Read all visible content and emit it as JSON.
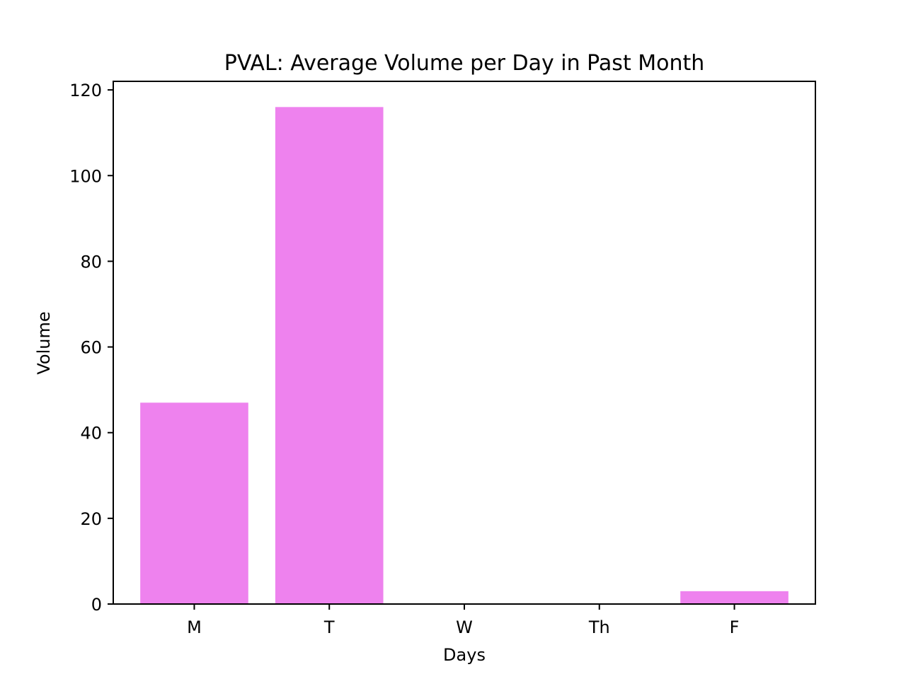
{
  "chart_data": {
    "type": "bar",
    "title": "PVAL: Average Volume per Day in Past Month",
    "xlabel": "Days",
    "ylabel": "Volume",
    "categories": [
      "M",
      "T",
      "W",
      "Th",
      "F"
    ],
    "values": [
      47,
      116,
      0,
      0,
      3
    ],
    "ylim": [
      0,
      122
    ],
    "yticks": [
      0,
      20,
      40,
      60,
      80,
      100,
      120
    ],
    "bar_color": "#ee82ee",
    "grid": false,
    "legend": "none"
  }
}
